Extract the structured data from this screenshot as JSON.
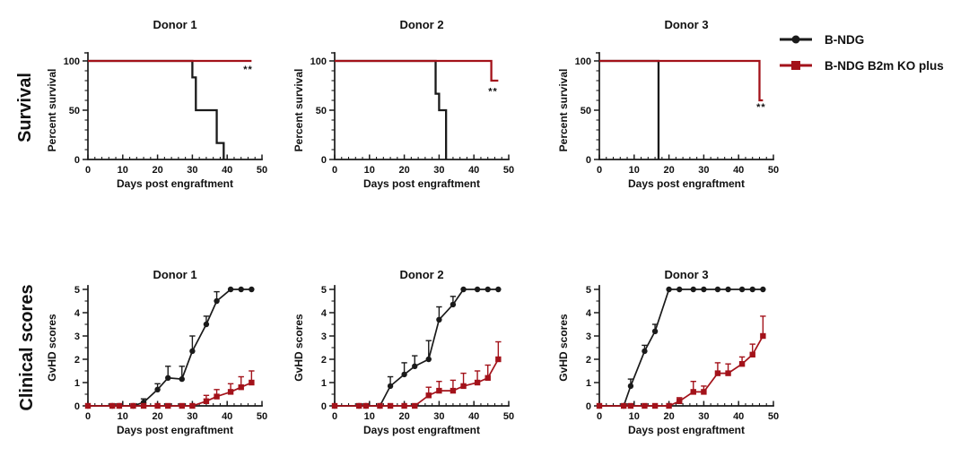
{
  "figure": {
    "background": "#ffffff",
    "row_labels": {
      "survival": "Survival",
      "clinical": "Clinical scores"
    },
    "legend": {
      "items": [
        {
          "label": "B-NDG",
          "color": "#1a1a1a",
          "marker": "circle"
        },
        {
          "label": "B-NDG B2m KO plus",
          "color": "#a3121a",
          "marker": "square"
        }
      ]
    }
  },
  "chart_data": [
    {
      "id": "survival-donor-1",
      "row": "survival",
      "col": 0,
      "type": "line",
      "title": "Donor 1",
      "xlabel": "Days post engraftment",
      "ylabel": "Percent survival",
      "xlim": [
        0,
        50
      ],
      "ylim": [
        0,
        100
      ],
      "xticks": [
        0,
        10,
        20,
        30,
        40,
        50
      ],
      "yticks": [
        0,
        50,
        100
      ],
      "xminor": 2,
      "yminor": 10,
      "annotation": {
        "text": "**",
        "x": 46,
        "y": 88
      },
      "series": [
        {
          "name": "B-NDG",
          "color": "#1a1a1a",
          "marker": "none",
          "x": [
            0,
            30,
            30,
            31,
            31,
            37,
            37,
            39,
            39
          ],
          "y": [
            100,
            100,
            83.3,
            83.3,
            50,
            50,
            16.7,
            16.7,
            0
          ]
        },
        {
          "name": "B-NDG B2m KO plus",
          "color": "#a3121a",
          "marker": "none",
          "x": [
            0,
            47
          ],
          "y": [
            100,
            100
          ]
        }
      ]
    },
    {
      "id": "survival-donor-2",
      "row": "survival",
      "col": 1,
      "type": "line",
      "title": "Donor 2",
      "xlabel": "Days post engraftment",
      "ylabel": "Percent survival",
      "xlim": [
        0,
        50
      ],
      "ylim": [
        0,
        100
      ],
      "xticks": [
        0,
        10,
        20,
        30,
        40,
        50
      ],
      "yticks": [
        0,
        50,
        100
      ],
      "xminor": 2,
      "yminor": 10,
      "annotation": {
        "text": "**",
        "x": 45.5,
        "y": 66
      },
      "series": [
        {
          "name": "B-NDG",
          "color": "#1a1a1a",
          "marker": "none",
          "x": [
            0,
            29,
            29,
            30,
            30,
            32,
            32
          ],
          "y": [
            100,
            100,
            66.7,
            66.7,
            50,
            50,
            0
          ]
        },
        {
          "name": "B-NDG B2m KO plus",
          "color": "#a3121a",
          "marker": "none",
          "x": [
            0,
            45,
            45,
            47
          ],
          "y": [
            100,
            100,
            80,
            80
          ]
        }
      ]
    },
    {
      "id": "survival-donor-3",
      "row": "survival",
      "col": 2,
      "type": "line",
      "title": "Donor 3",
      "xlabel": "Days post engraftment",
      "ylabel": "Percent survival",
      "xlim": [
        0,
        50
      ],
      "ylim": [
        0,
        100
      ],
      "xticks": [
        0,
        10,
        20,
        30,
        40,
        50
      ],
      "yticks": [
        0,
        50,
        100
      ],
      "xminor": 2,
      "yminor": 10,
      "annotation": {
        "text": "**",
        "x": 46.5,
        "y": 50
      },
      "series": [
        {
          "name": "B-NDG",
          "color": "#1a1a1a",
          "marker": "none",
          "x": [
            0,
            17,
            17
          ],
          "y": [
            100,
            100,
            0
          ]
        },
        {
          "name": "B-NDG B2m KO plus",
          "color": "#a3121a",
          "marker": "none",
          "x": [
            0,
            46,
            46,
            47
          ],
          "y": [
            100,
            100,
            60,
            60
          ]
        }
      ]
    },
    {
      "id": "clinical-donor-1",
      "row": "clinical",
      "col": 0,
      "type": "line",
      "title": "Donor 1",
      "xlabel": "Days post engraftment",
      "ylabel": "GvHD scores",
      "xlim": [
        0,
        50
      ],
      "ylim": [
        0,
        5
      ],
      "xticks": [
        0,
        10,
        20,
        30,
        40,
        50
      ],
      "yticks": [
        0,
        1,
        2,
        3,
        4,
        5
      ],
      "xminor": 2,
      "yminor": 0.5,
      "series": [
        {
          "name": "B-NDG",
          "color": "#1a1a1a",
          "marker": "circle",
          "x": [
            0,
            7,
            9,
            13,
            16,
            20,
            23,
            27,
            30,
            34,
            37,
            41,
            44,
            47
          ],
          "y": [
            0,
            0,
            0,
            0,
            0.15,
            0.7,
            1.2,
            1.15,
            2.35,
            3.5,
            4.5,
            5,
            5,
            5
          ],
          "err": [
            0,
            0,
            0,
            0,
            0.15,
            0.25,
            0.5,
            0.55,
            0.65,
            0.35,
            0.4,
            0,
            0,
            0
          ]
        },
        {
          "name": "B-NDG B2m KO plus",
          "color": "#a3121a",
          "marker": "square",
          "x": [
            0,
            7,
            9,
            13,
            16,
            20,
            23,
            27,
            30,
            34,
            37,
            41,
            44,
            47
          ],
          "y": [
            0,
            0,
            0,
            0,
            0,
            0,
            0,
            0,
            0,
            0.2,
            0.4,
            0.6,
            0.8,
            1.0
          ],
          "err": [
            0,
            0,
            0,
            0,
            0,
            0,
            0,
            0,
            0,
            0.25,
            0.3,
            0.35,
            0.45,
            0.5
          ]
        }
      ]
    },
    {
      "id": "clinical-donor-2",
      "row": "clinical",
      "col": 1,
      "type": "line",
      "title": "Donor 2",
      "xlabel": "Days post engraftment",
      "ylabel": "GvHD scores",
      "xlim": [
        0,
        50
      ],
      "ylim": [
        0,
        5
      ],
      "xticks": [
        0,
        10,
        20,
        30,
        40,
        50
      ],
      "yticks": [
        0,
        1,
        2,
        3,
        4,
        5
      ],
      "xminor": 2,
      "yminor": 0.5,
      "series": [
        {
          "name": "B-NDG",
          "color": "#1a1a1a",
          "marker": "circle",
          "x": [
            0,
            7,
            9,
            13,
            16,
            20,
            23,
            27,
            30,
            34,
            37,
            41,
            44,
            47
          ],
          "y": [
            0,
            0,
            0,
            0,
            0.85,
            1.35,
            1.7,
            2.0,
            3.7,
            4.35,
            5,
            5,
            5,
            5
          ],
          "err": [
            0,
            0,
            0,
            0,
            0.4,
            0.5,
            0.45,
            0.8,
            0.55,
            0.35,
            0,
            0,
            0,
            0
          ]
        },
        {
          "name": "B-NDG B2m KO plus",
          "color": "#a3121a",
          "marker": "square",
          "x": [
            0,
            7,
            9,
            13,
            16,
            20,
            23,
            27,
            30,
            34,
            37,
            41,
            44,
            47
          ],
          "y": [
            0,
            0,
            0,
            0,
            0,
            0,
            0,
            0.45,
            0.65,
            0.65,
            0.85,
            1.0,
            1.2,
            2.0
          ],
          "err": [
            0,
            0,
            0,
            0,
            0,
            0,
            0,
            0.35,
            0.4,
            0.45,
            0.55,
            0.5,
            0.55,
            0.75
          ]
        }
      ]
    },
    {
      "id": "clinical-donor-3",
      "row": "clinical",
      "col": 2,
      "type": "line",
      "title": "Donor 3",
      "xlabel": "Days post engraftment",
      "ylabel": "GvHD scores",
      "xlim": [
        0,
        50
      ],
      "ylim": [
        0,
        5
      ],
      "xticks": [
        0,
        10,
        20,
        30,
        40,
        50
      ],
      "yticks": [
        0,
        1,
        2,
        3,
        4,
        5
      ],
      "xminor": 2,
      "yminor": 0.5,
      "series": [
        {
          "name": "B-NDG",
          "color": "#1a1a1a",
          "marker": "circle",
          "x": [
            0,
            7,
            9,
            13,
            16,
            20,
            23,
            27,
            30,
            34,
            37,
            41,
            44,
            47
          ],
          "y": [
            0,
            0,
            0.85,
            2.35,
            3.2,
            5,
            5,
            5,
            5,
            5,
            5,
            5,
            5,
            5
          ],
          "err": [
            0,
            0,
            0.3,
            0.25,
            0.3,
            0,
            0,
            0,
            0,
            0,
            0,
            0,
            0,
            0
          ]
        },
        {
          "name": "B-NDG B2m KO plus",
          "color": "#a3121a",
          "marker": "square",
          "x": [
            0,
            7,
            9,
            13,
            16,
            20,
            23,
            27,
            30,
            34,
            37,
            41,
            44,
            47
          ],
          "y": [
            0,
            0,
            0,
            0,
            0,
            0,
            0.2,
            0.6,
            0.6,
            1.4,
            1.4,
            1.8,
            2.2,
            3.0
          ],
          "err": [
            0,
            0,
            0,
            0,
            0,
            0,
            0.15,
            0.45,
            0.25,
            0.45,
            0.4,
            0.3,
            0.45,
            0.85
          ]
        }
      ]
    }
  ]
}
